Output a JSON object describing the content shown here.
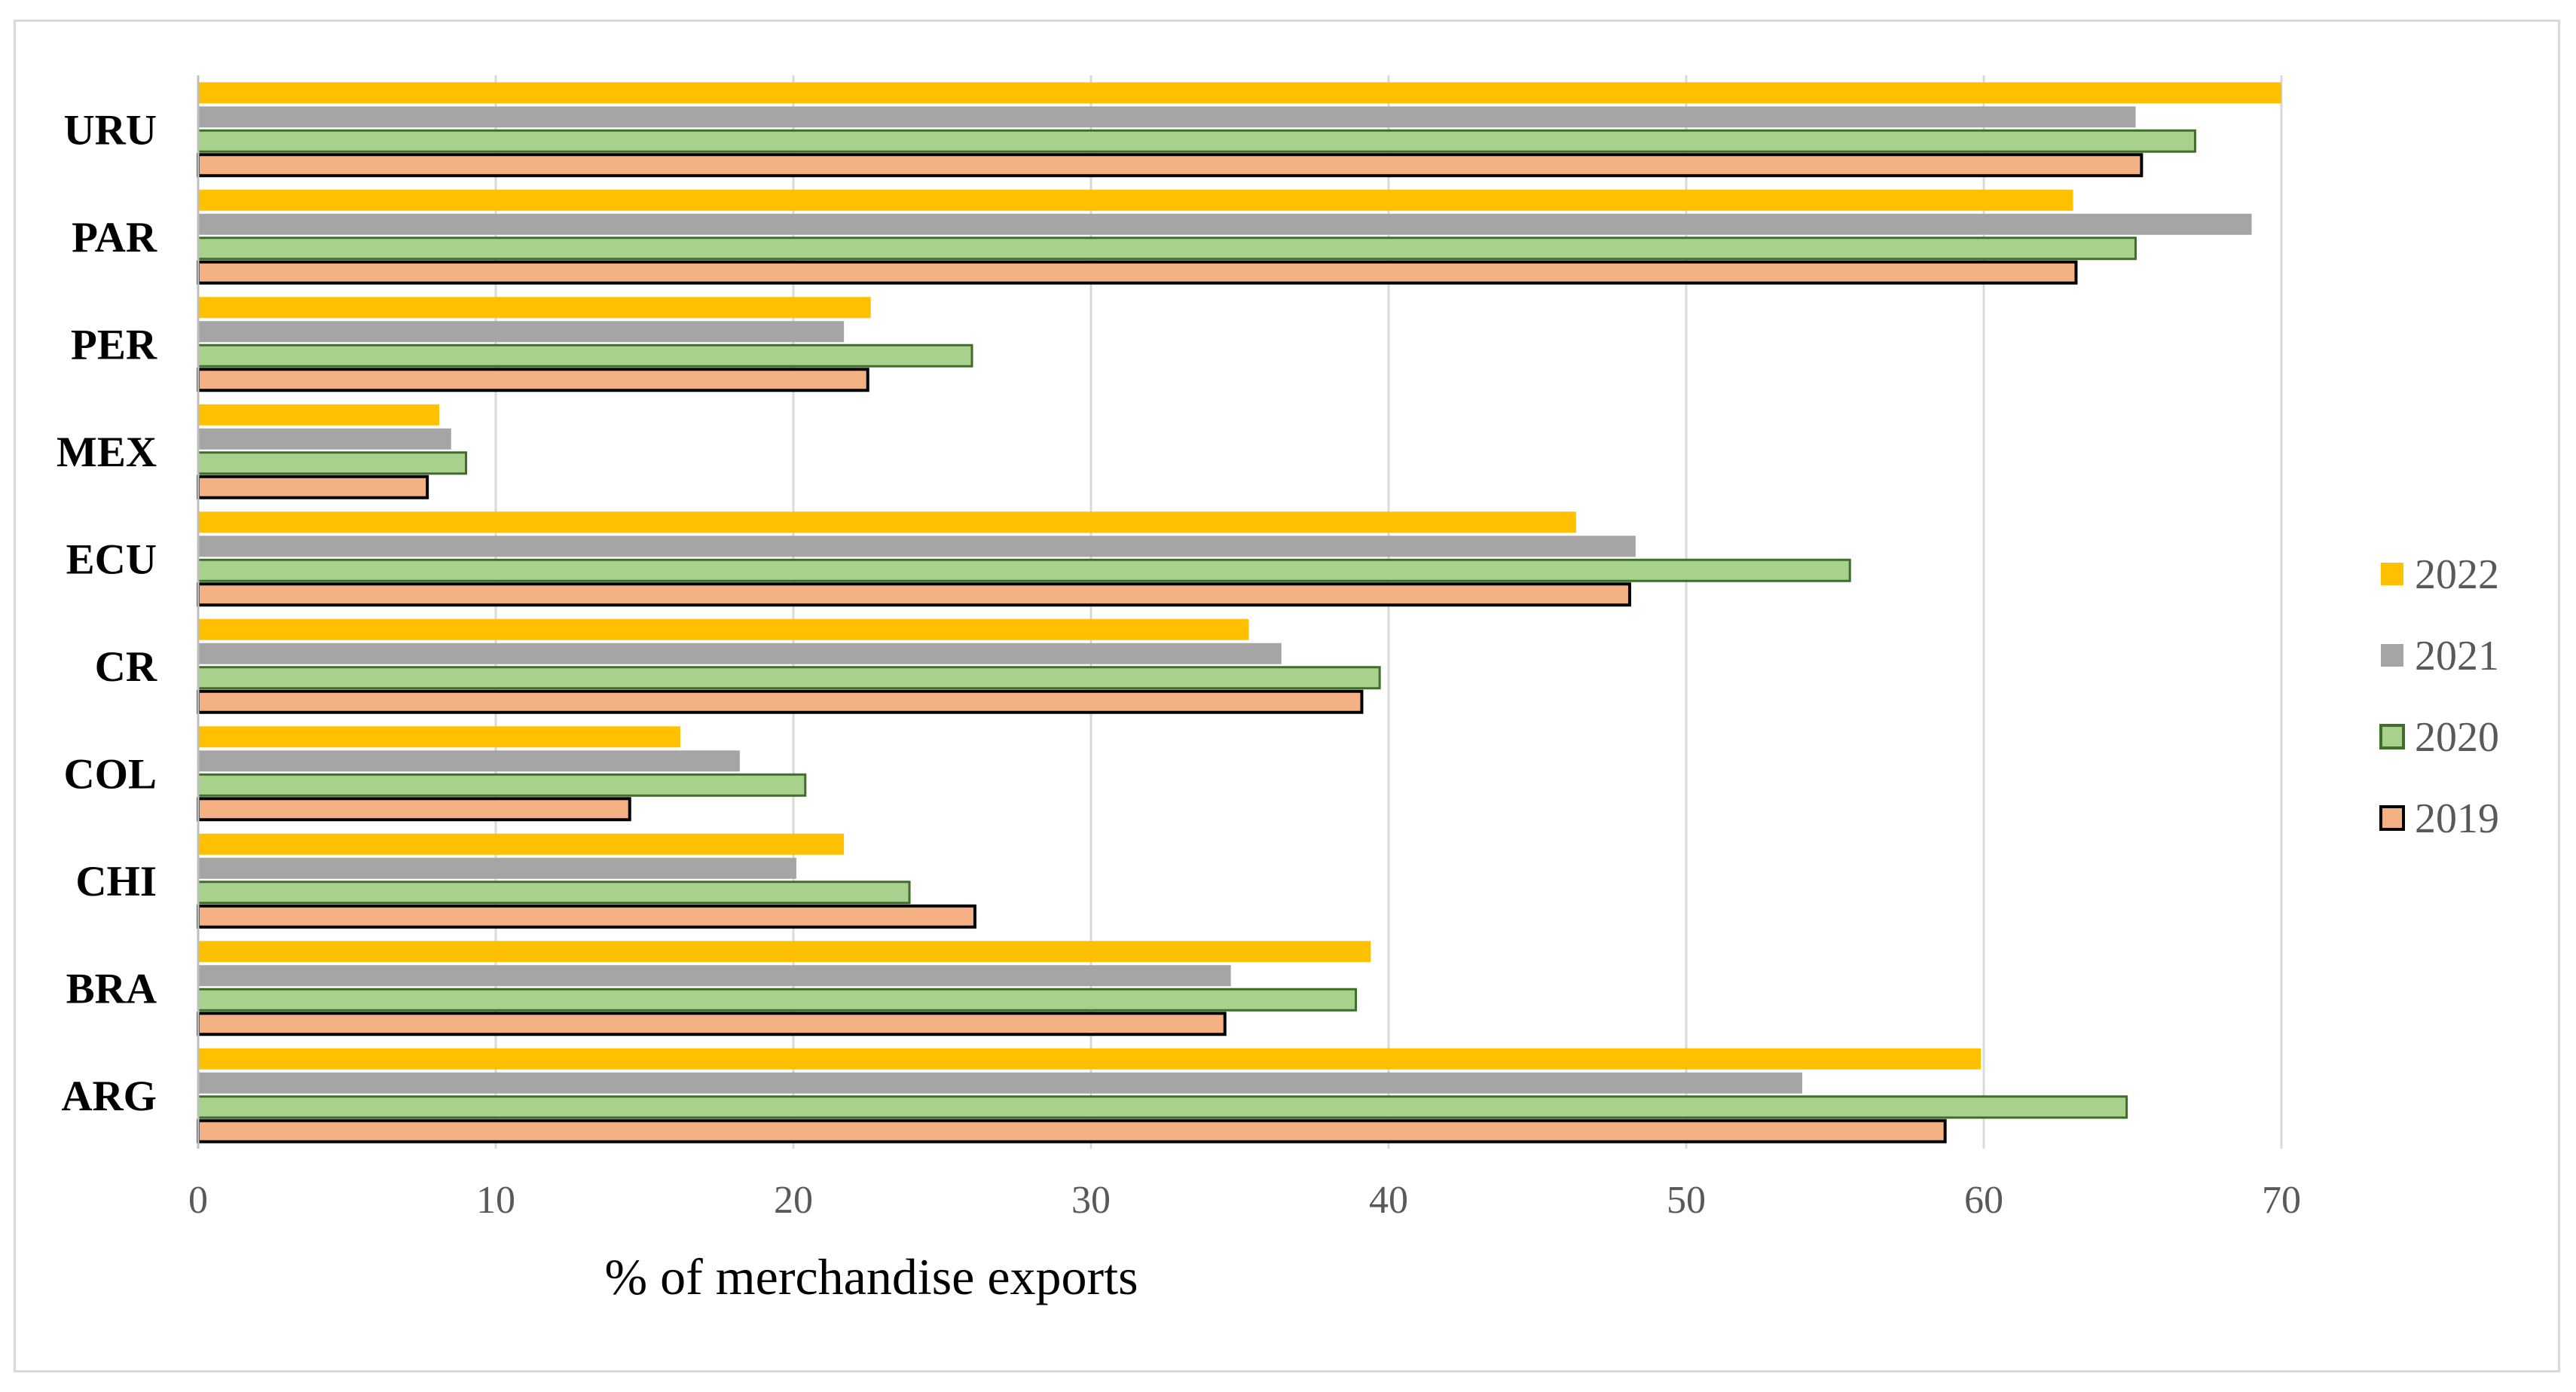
{
  "chart_data": {
    "type": "bar",
    "orientation": "horizontal",
    "title": "",
    "xlabel": "% of merchandise exports",
    "ylabel": "",
    "xlim": [
      0,
      70
    ],
    "xticks": [
      0,
      10,
      20,
      30,
      40,
      50,
      60,
      70
    ],
    "grid": true,
    "legend_position": "right",
    "categories": [
      "ARG",
      "BRA",
      "CHI",
      "COL",
      "CR",
      "ECU",
      "MEX",
      "PER",
      "PAR",
      "URU"
    ],
    "series": [
      {
        "name": "2019",
        "color": "#F4B183",
        "outline": "#000000",
        "values": [
          58.7,
          34.5,
          26.1,
          14.5,
          39.1,
          48.1,
          7.7,
          22.5,
          63.1,
          65.3
        ]
      },
      {
        "name": "2020",
        "color": "#A9D18E",
        "outline": "#3F6E2A",
        "values": [
          64.8,
          38.9,
          23.9,
          20.4,
          39.7,
          55.5,
          9.0,
          26.0,
          65.1,
          67.1
        ]
      },
      {
        "name": "2021",
        "color": "#A5A5A5",
        "outline": "",
        "values": [
          53.9,
          34.7,
          20.1,
          18.2,
          36.4,
          48.3,
          8.5,
          21.7,
          69.0,
          65.1
        ]
      },
      {
        "name": "2022",
        "color": "#FFC000",
        "outline": "",
        "values": [
          59.9,
          39.4,
          21.7,
          16.2,
          35.3,
          46.3,
          8.1,
          22.6,
          63.0,
          70.0
        ]
      }
    ],
    "legend_order": [
      "2022",
      "2021",
      "2020",
      "2019"
    ]
  }
}
